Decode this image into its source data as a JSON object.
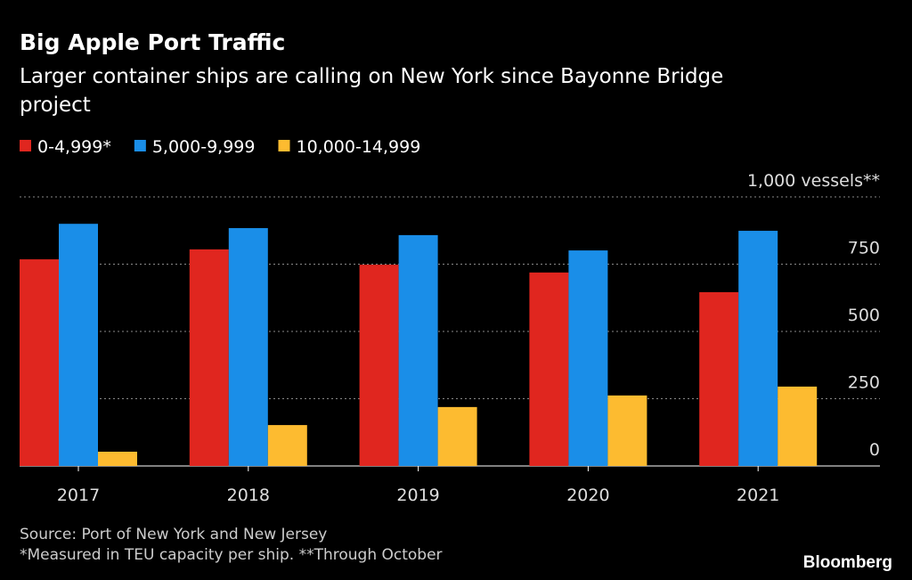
{
  "chart_data": {
    "type": "bar",
    "title": "Big Apple Port Traffic",
    "subtitle": [
      "Larger container ships are calling on New York since Bayonne Bridge",
      "project"
    ],
    "notes": [
      "Source: Port of New York and New Jersey",
      "*Measured in TEU capacity per ship. **Through October"
    ],
    "brand": "Bloomberg",
    "categories": [
      "2017",
      "2018",
      "2019",
      "2020",
      "2021"
    ],
    "series": [
      {
        "name": "0-4,999*",
        "color": "#e0261f",
        "values": [
          768,
          805,
          748,
          719,
          646
        ]
      },
      {
        "name": "5,000-9,999",
        "color": "#1a8ee8",
        "values": [
          900,
          884,
          858,
          801,
          874
        ]
      },
      {
        "name": "10,000-14,999",
        "color": "#fdbb30",
        "values": [
          53,
          152,
          219,
          262,
          295
        ]
      }
    ],
    "ylim": [
      0,
      1000
    ],
    "yticks": [
      0,
      250,
      500,
      750,
      {
        "value": 1000,
        "label": "1,000 vessels**"
      }
    ],
    "grid": true
  }
}
